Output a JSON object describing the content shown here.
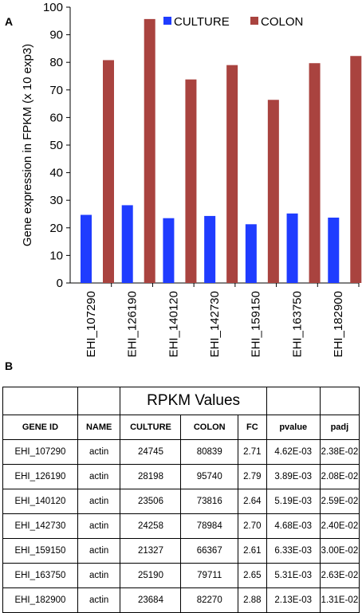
{
  "labels": {
    "panel_a": "A",
    "panel_b": "B"
  },
  "chart_data": {
    "type": "bar",
    "title": "",
    "xlabel": "",
    "ylabel": "Gene expression in FPKM (x 10 exp3)",
    "ylim": [
      0,
      100
    ],
    "yticks": [
      0,
      10,
      20,
      30,
      40,
      50,
      60,
      70,
      80,
      90,
      100
    ],
    "grid": false,
    "legend_position": "top",
    "categories": [
      "EHI_107290",
      "EHI_126190",
      "EHI_140120",
      "EHI_142730",
      "EHI_159150",
      "EHI_163750",
      "EHI_182900"
    ],
    "series": [
      {
        "name": "CULTURE",
        "color": "#1f3cff",
        "values": [
          24.7,
          28.2,
          23.5,
          24.3,
          21.3,
          25.2,
          23.7
        ]
      },
      {
        "name": "COLON",
        "color": "#a9433f",
        "values": [
          80.8,
          95.7,
          73.8,
          79.0,
          66.4,
          79.7,
          82.3
        ]
      }
    ]
  },
  "table": {
    "group_header": "RPKM  Values",
    "columns": [
      "GENE ID",
      "NAME",
      "CULTURE",
      "COLON",
      "FC",
      "pvalue",
      "padj"
    ],
    "rows": [
      [
        "EHI_107290",
        "actin",
        "24745",
        "80839",
        "2.71",
        "4.62E-03",
        "2.38E-02"
      ],
      [
        "EHI_126190",
        "actin",
        "28198",
        "95740",
        "2.79",
        "3.89E-03",
        "2.08E-02"
      ],
      [
        "EHI_140120",
        "actin",
        "23506",
        "73816",
        "2.64",
        "5.19E-03",
        "2.59E-02"
      ],
      [
        "EHI_142730",
        "actin",
        "24258",
        "78984",
        "2.70",
        "4.68E-03",
        "2.40E-02"
      ],
      [
        "EHI_159150",
        "actin",
        "21327",
        "66367",
        "2.61",
        "6.33E-03",
        "3.00E-02"
      ],
      [
        "EHI_163750",
        "actin",
        "25190",
        "79711",
        "2.65",
        "5.31E-03",
        "2.63E-02"
      ],
      [
        "EHI_182900",
        "actin",
        "23684",
        "82270",
        "2.88",
        "2.13E-03",
        "1.31E-02"
      ]
    ]
  }
}
